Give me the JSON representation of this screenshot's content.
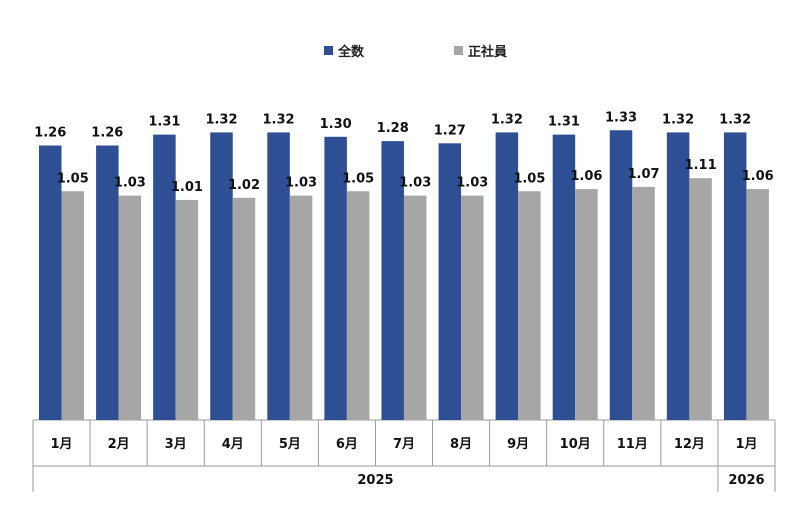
{
  "chart_data": {
    "type": "bar",
    "categories": [
      "1月",
      "2月",
      "3月",
      "4月",
      "5月",
      "6月",
      "7月",
      "8月",
      "9月",
      "10月",
      "11月",
      "12月",
      "1月"
    ],
    "years": [
      {
        "label": "2025",
        "count": 12
      },
      {
        "label": "2026",
        "count": 1
      }
    ],
    "series": [
      {
        "name": "全数",
        "color": "#2f4f95",
        "values": [
          1.26,
          1.26,
          1.31,
          1.32,
          1.32,
          1.3,
          1.28,
          1.27,
          1.32,
          1.31,
          1.33,
          1.32,
          1.32
        ]
      },
      {
        "name": "正社員",
        "color": "#a6a6a6",
        "values": [
          1.05,
          1.03,
          1.01,
          1.02,
          1.03,
          1.05,
          1.03,
          1.03,
          1.05,
          1.06,
          1.07,
          1.11,
          1.06
        ]
      }
    ],
    "value_labels": {
      "series_0": [
        "1.26",
        "1.26",
        "1.31",
        "1.32",
        "1.32",
        "1.30",
        "1.28",
        "1.27",
        "1.32",
        "1.31",
        "1.33",
        "1.32",
        "1.32"
      ],
      "series_1": [
        "1.05",
        "1.03",
        "1.01",
        "1.02",
        "1.03",
        "1.05",
        "1.03",
        "1.03",
        "1.05",
        "1.06",
        "1.07",
        "1.11",
        "1.06"
      ]
    },
    "ylim": [
      0,
      1.4
    ],
    "grid": false,
    "legend_position": "top-center",
    "title": "",
    "xlabel": "",
    "ylabel": ""
  }
}
